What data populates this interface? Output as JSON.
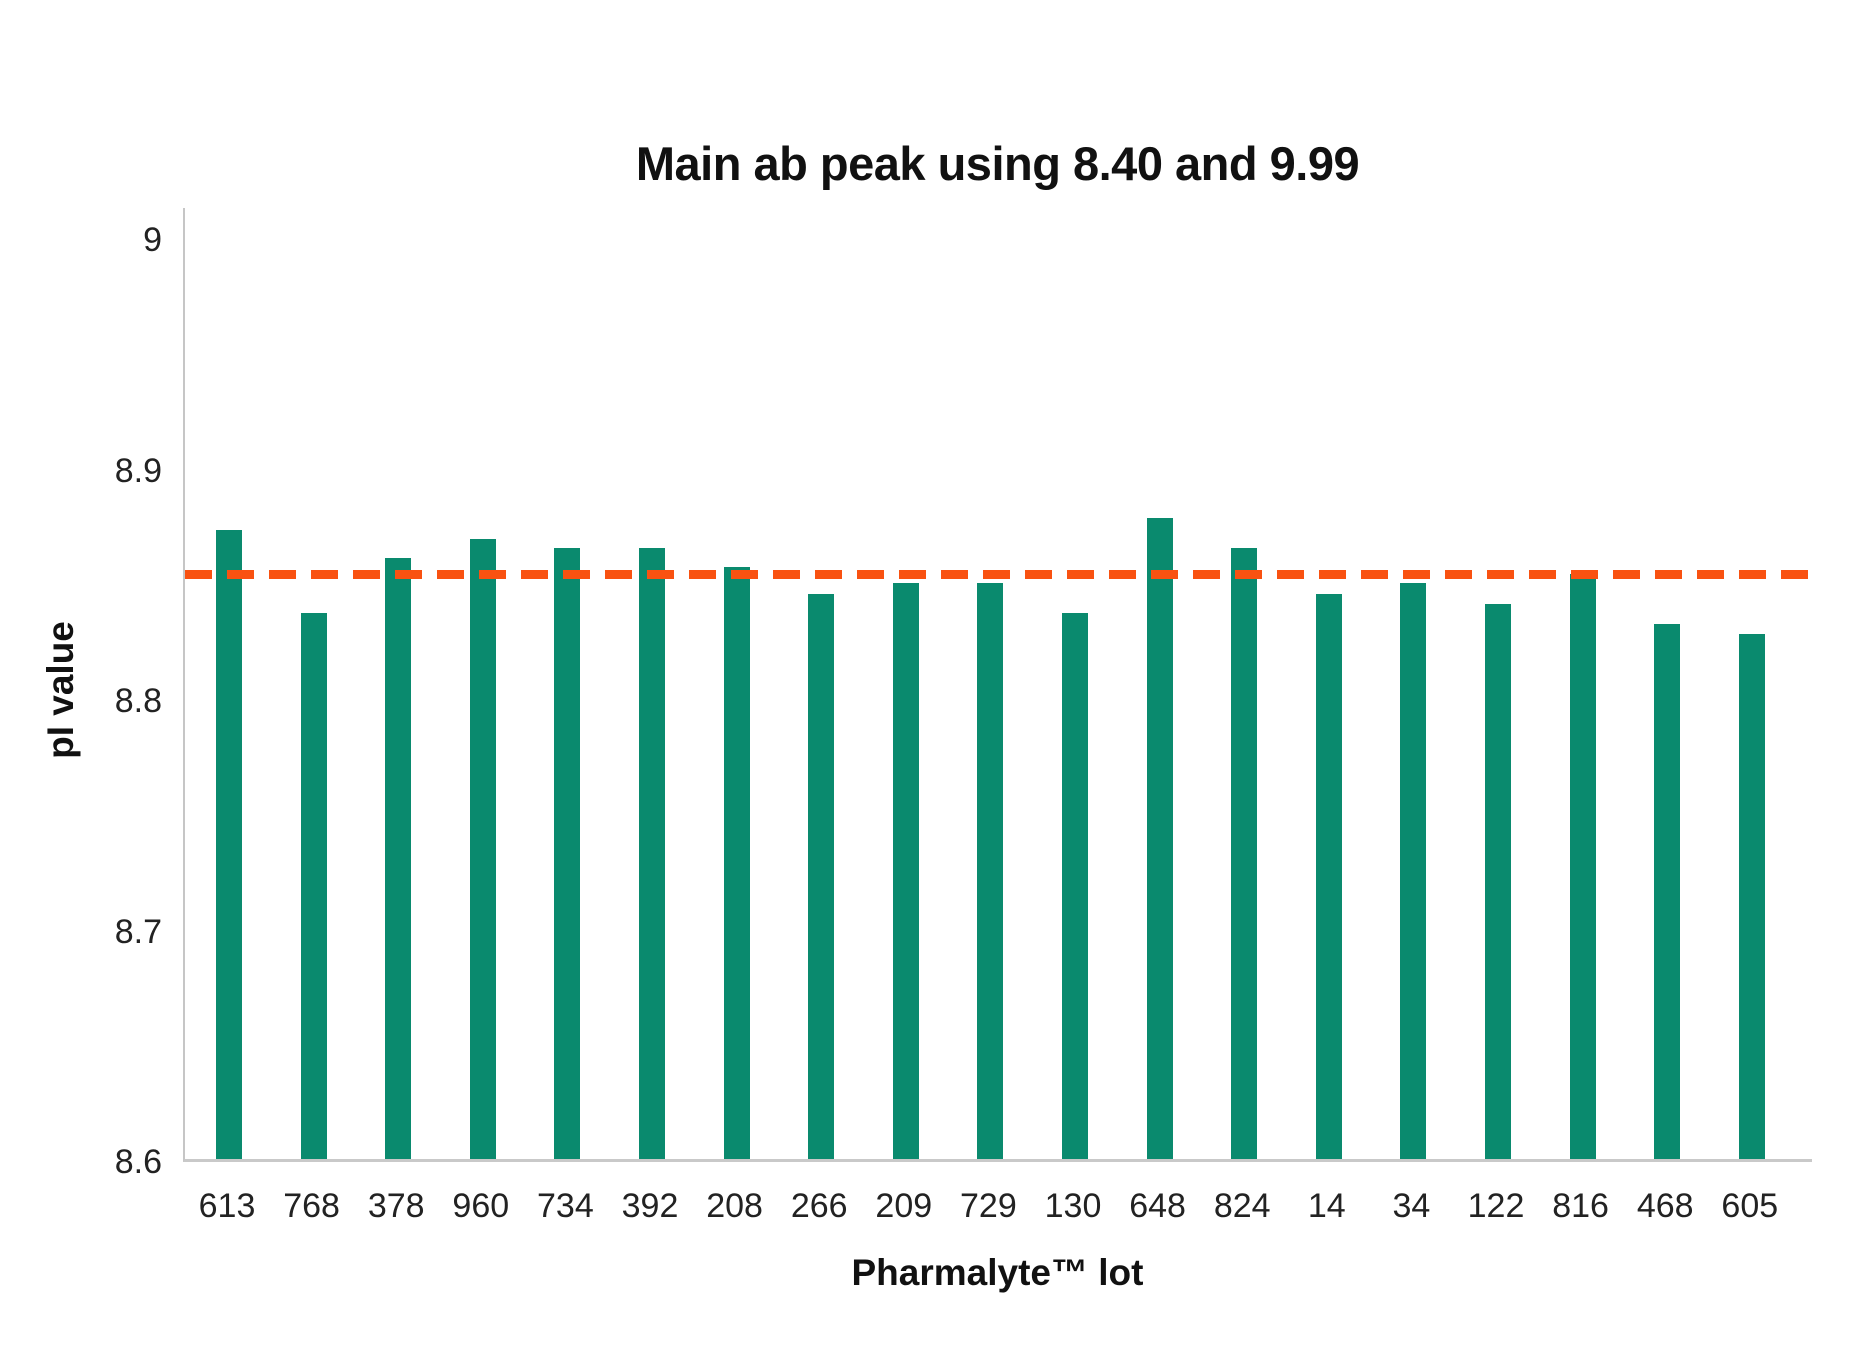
{
  "page": {
    "background": "#ffffff"
  },
  "chart_data": {
    "type": "bar",
    "title": "Main ab peak using 8.40 and 9.99",
    "xlabel": "Pharmalyte™ lot",
    "ylabel": "pI value",
    "categories": [
      "613",
      "768",
      "378",
      "960",
      "734",
      "392",
      "208",
      "266",
      "209",
      "729",
      "130",
      "648",
      "824",
      "14",
      "34",
      "122",
      "816",
      "468",
      "605"
    ],
    "values": [
      8.873,
      8.837,
      8.861,
      8.869,
      8.865,
      8.865,
      8.857,
      8.845,
      8.85,
      8.85,
      8.837,
      8.878,
      8.865,
      8.845,
      8.85,
      8.841,
      8.854,
      8.832,
      8.828
    ],
    "reference_line": {
      "value": 8.855,
      "style": "dashed",
      "color": "#f95211"
    },
    "y_ticks": [
      9,
      8.9,
      8.8,
      8.7,
      8.6
    ],
    "y_tick_labels": [
      "9",
      "8.9",
      "8.8",
      "8.7",
      "8.6"
    ],
    "ylim": [
      8.6,
      9.014
    ],
    "bar_color": "#0a8a6e",
    "axis_color": "#c8c8c8",
    "grid": false,
    "legend": false
  }
}
